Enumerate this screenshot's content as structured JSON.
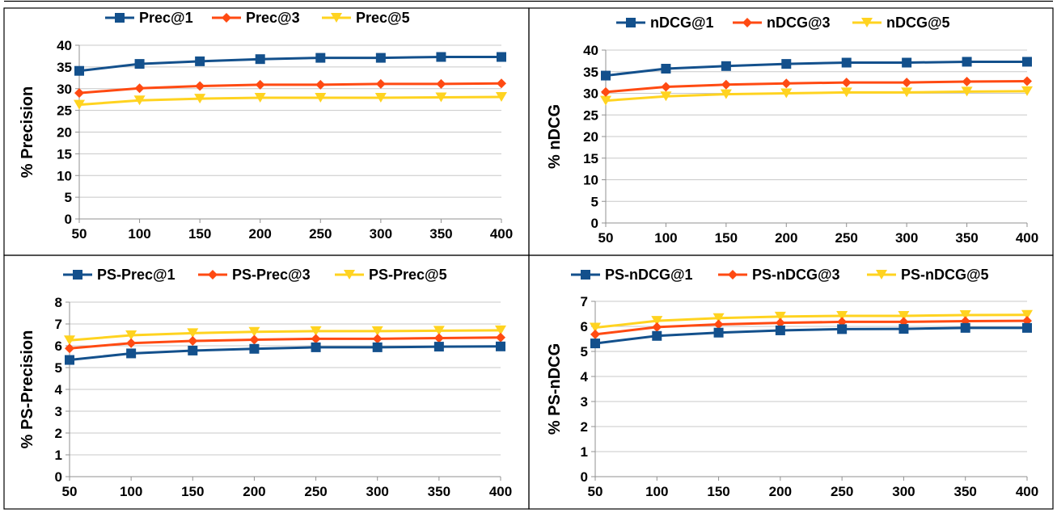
{
  "colors": {
    "series1": "#13508c",
    "series2": "#ff4a12",
    "series3": "#ffd320"
  },
  "chart_data": [
    {
      "type": "line",
      "x": [
        50,
        100,
        150,
        200,
        250,
        300,
        350,
        400
      ],
      "ylabel": "% Precision",
      "ylim": [
        0,
        40
      ],
      "yticks": [
        0,
        5,
        10,
        15,
        20,
        25,
        30,
        35,
        40
      ],
      "grid": true,
      "legend_position": "top",
      "series": [
        {
          "name": "Prec@1",
          "marker": "square",
          "values": [
            34.1,
            35.7,
            36.3,
            36.8,
            37.1,
            37.1,
            37.3,
            37.3
          ]
        },
        {
          "name": "Prec@3",
          "marker": "diamond",
          "values": [
            29.0,
            30.1,
            30.6,
            30.9,
            30.9,
            31.1,
            31.1,
            31.2
          ]
        },
        {
          "name": "Prec@5",
          "marker": "triangle",
          "values": [
            26.3,
            27.3,
            27.7,
            27.9,
            27.9,
            27.9,
            28.0,
            28.1
          ]
        }
      ]
    },
    {
      "type": "line",
      "x": [
        50,
        100,
        150,
        200,
        250,
        300,
        350,
        400
      ],
      "ylabel": "% nDCG",
      "ylim": [
        0,
        40
      ],
      "yticks": [
        0,
        5,
        10,
        15,
        20,
        25,
        30,
        35,
        40
      ],
      "grid": true,
      "legend_position": "top",
      "series": [
        {
          "name": "nDCG@1",
          "marker": "square",
          "values": [
            34.1,
            35.7,
            36.3,
            36.8,
            37.1,
            37.1,
            37.3,
            37.3
          ]
        },
        {
          "name": "nDCG@3",
          "marker": "diamond",
          "values": [
            30.3,
            31.5,
            32.0,
            32.3,
            32.5,
            32.5,
            32.7,
            32.8
          ]
        },
        {
          "name": "nDCG@5",
          "marker": "triangle",
          "values": [
            28.3,
            29.3,
            29.8,
            30.0,
            30.2,
            30.2,
            30.4,
            30.5
          ]
        }
      ]
    },
    {
      "type": "line",
      "x": [
        50,
        100,
        150,
        200,
        250,
        300,
        350,
        400
      ],
      "ylabel": "% PS-Precision",
      "ylim": [
        0,
        8
      ],
      "yticks": [
        0,
        1,
        2,
        3,
        4,
        5,
        6,
        7,
        8
      ],
      "grid": true,
      "legend_position": "top",
      "series": [
        {
          "name": "PS-Prec@1",
          "marker": "square",
          "values": [
            5.35,
            5.65,
            5.78,
            5.86,
            5.93,
            5.93,
            5.96,
            5.97
          ]
        },
        {
          "name": "PS-Prec@3",
          "marker": "diamond",
          "values": [
            5.88,
            6.12,
            6.22,
            6.28,
            6.32,
            6.32,
            6.35,
            6.38
          ]
        },
        {
          "name": "PS-Prec@5",
          "marker": "triangle",
          "values": [
            6.25,
            6.48,
            6.58,
            6.64,
            6.67,
            6.67,
            6.69,
            6.71
          ]
        }
      ]
    },
    {
      "type": "line",
      "x": [
        50,
        100,
        150,
        200,
        250,
        300,
        350,
        400
      ],
      "ylabel": "% PS-nDCG",
      "ylim": [
        0,
        7
      ],
      "yticks": [
        0,
        1,
        2,
        3,
        4,
        5,
        6,
        7
      ],
      "grid": true,
      "legend_position": "top",
      "series": [
        {
          "name": "PS-nDCG@1",
          "marker": "square",
          "values": [
            5.32,
            5.62,
            5.75,
            5.84,
            5.89,
            5.9,
            5.94,
            5.94
          ]
        },
        {
          "name": "PS-nDCG@3",
          "marker": "diamond",
          "values": [
            5.68,
            5.97,
            6.08,
            6.14,
            6.18,
            6.18,
            6.21,
            6.22
          ]
        },
        {
          "name": "PS-nDCG@5",
          "marker": "triangle",
          "values": [
            5.95,
            6.22,
            6.33,
            6.39,
            6.42,
            6.42,
            6.45,
            6.46
          ]
        }
      ]
    }
  ]
}
